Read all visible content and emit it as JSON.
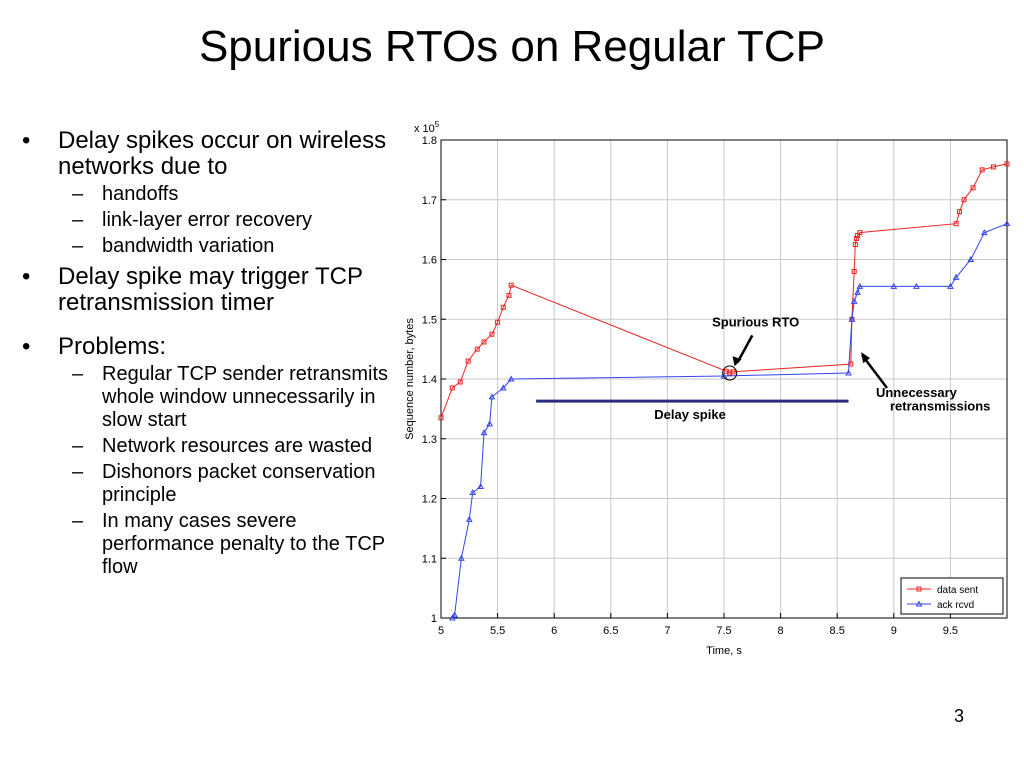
{
  "slide": {
    "title": "Spurious RTOs on Regular TCP",
    "page_number": "3",
    "bullets": [
      {
        "text": "Delay spikes occur on wireless networks due to",
        "sub": [
          "handoffs",
          "link-layer error recovery",
          "bandwidth variation"
        ]
      },
      {
        "text": "Delay spike may trigger TCP retransmission timer",
        "sub": []
      },
      {
        "text": "Problems:",
        "sub": [
          "Regular TCP sender retransmits whole window unnecessarily in slow start",
          "Network resources are wasted",
          "Dishonors packet conservation principle",
          "In many cases severe performance penalty to the TCP flow"
        ]
      }
    ]
  },
  "chart_data": {
    "type": "line",
    "xlabel": "Time, s",
    "ylabel": "Sequence number, bytes",
    "y_multiplier": "x 10",
    "y_multiplier_exp": "5",
    "xlim": [
      5,
      10
    ],
    "ylim": [
      1.0,
      1.8
    ],
    "xticks": [
      5,
      5.5,
      6,
      6.5,
      7,
      7.5,
      8,
      8.5,
      9,
      9.5
    ],
    "xtick_labels": [
      "5",
      "5.5",
      "6",
      "6.5",
      "7",
      "7.5",
      "8",
      "8.5",
      "9",
      "9.5"
    ],
    "yticks": [
      1.0,
      1.1,
      1.2,
      1.3,
      1.4,
      1.5,
      1.6,
      1.7,
      1.8
    ],
    "ytick_labels": [
      "1",
      "1.1",
      "1.2",
      "1.3",
      "1.4",
      "1.5",
      "1.6",
      "1.7",
      "1.8"
    ],
    "grid": true,
    "legend_position": "bottom-right",
    "series": [
      {
        "name": "data sent",
        "color": "#ee2222",
        "marker": "square",
        "x": [
          5.0,
          5.1,
          5.17,
          5.24,
          5.32,
          5.38,
          5.45,
          5.5,
          5.55,
          5.6,
          5.62,
          7.52,
          7.55,
          7.58,
          8.62,
          8.63,
          8.65,
          8.66,
          8.67,
          8.68,
          8.7,
          9.55,
          9.58,
          9.62,
          9.7,
          9.78,
          9.88,
          10.0
        ],
        "y": [
          1.335,
          1.385,
          1.395,
          1.43,
          1.45,
          1.462,
          1.475,
          1.495,
          1.52,
          1.54,
          1.557,
          1.413,
          1.41,
          1.412,
          1.425,
          1.5,
          1.58,
          1.625,
          1.635,
          1.64,
          1.645,
          1.66,
          1.68,
          1.7,
          1.72,
          1.75,
          1.755,
          1.76
        ]
      },
      {
        "name": "ack rcvd",
        "color": "#3344ee",
        "marker": "triangle",
        "x": [
          5.1,
          5.12,
          5.18,
          5.25,
          5.28,
          5.35,
          5.38,
          5.43,
          5.45,
          5.55,
          5.62,
          7.5,
          8.6,
          8.63,
          8.65,
          8.68,
          8.7,
          9.0,
          9.2,
          9.5,
          9.55,
          9.68,
          9.8,
          10.0
        ],
        "y": [
          1.0,
          1.005,
          1.1,
          1.165,
          1.21,
          1.22,
          1.31,
          1.325,
          1.37,
          1.385,
          1.4,
          1.405,
          1.41,
          1.5,
          1.53,
          1.545,
          1.555,
          1.555,
          1.555,
          1.555,
          1.57,
          1.6,
          1.645,
          1.66
        ]
      }
    ],
    "annotations": [
      {
        "text": "Spurious RTO"
      },
      {
        "text_lines": [
          "Unnecessary",
          "retransmissions"
        ]
      },
      {
        "text": "Delay spike",
        "x_start": 5.84,
        "x_end": 8.6,
        "y": 1.363
      }
    ]
  }
}
